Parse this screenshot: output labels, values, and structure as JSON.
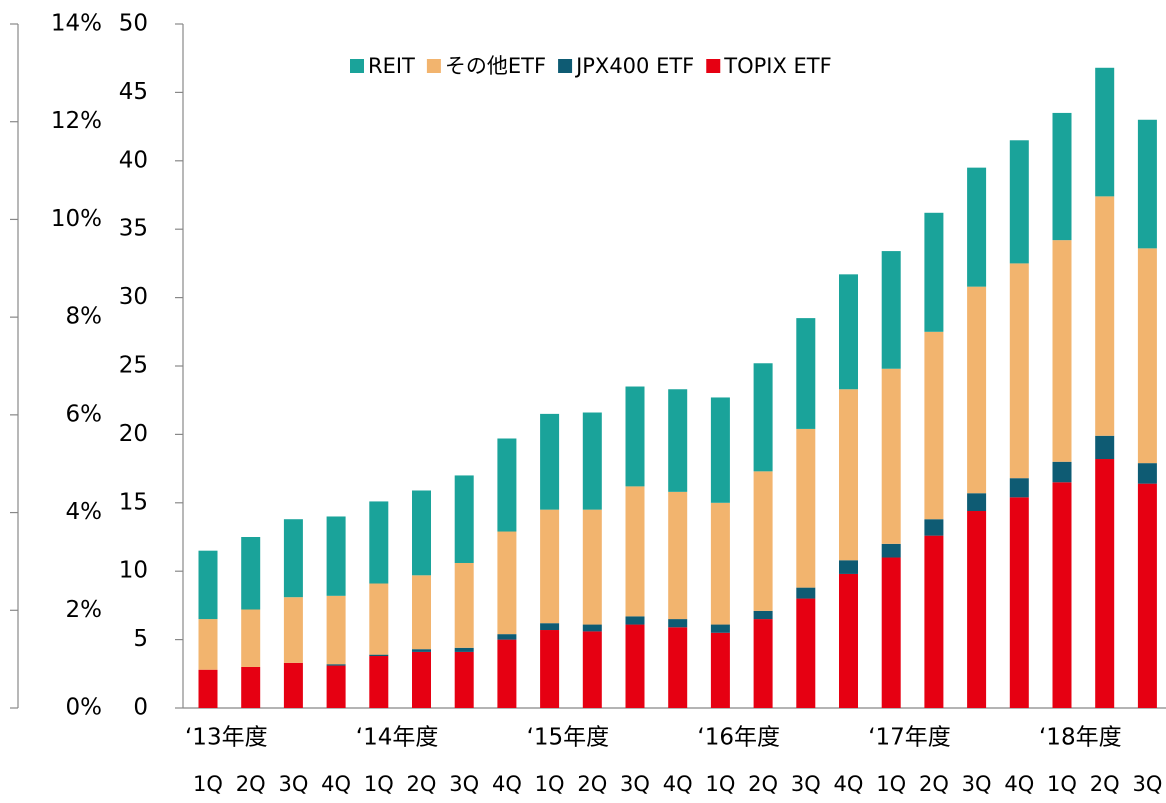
{
  "chart_data": {
    "type": "stacked_bar",
    "categories": [
      "1Q",
      "2Q",
      "3Q",
      "4Q",
      "1Q",
      "2Q",
      "3Q",
      "4Q",
      "1Q",
      "2Q",
      "3Q",
      "4Q",
      "1Q",
      "2Q",
      "3Q",
      "4Q",
      "1Q",
      "2Q",
      "3Q",
      "4Q",
      "1Q",
      "2Q",
      "3Q"
    ],
    "x_groups": [
      "‘13年度",
      null,
      null,
      null,
      "‘14年度",
      null,
      null,
      null,
      "‘15年度",
      null,
      null,
      null,
      "‘16年度",
      null,
      null,
      null,
      "‘17年度",
      null,
      null,
      null,
      "‘18年度",
      null,
      null
    ],
    "series": [
      {
        "name": "REIT",
        "color": "#1aa39a",
        "values": [
          5.0,
          5.3,
          5.7,
          5.8,
          6.0,
          6.2,
          6.4,
          6.8,
          7.0,
          7.1,
          7.3,
          7.5,
          7.7,
          7.9,
          8.1,
          8.4,
          8.6,
          8.7,
          8.7,
          9.0,
          9.3,
          9.4,
          9.4
        ]
      },
      {
        "name": "その他ETF",
        "color": "#f2b46e",
        "values": [
          3.7,
          4.2,
          4.8,
          5.0,
          5.2,
          5.4,
          6.2,
          7.5,
          8.3,
          8.4,
          9.5,
          9.3,
          8.9,
          10.2,
          11.6,
          12.5,
          12.8,
          13.7,
          15.1,
          15.7,
          16.2,
          17.5,
          15.7
        ]
      },
      {
        "name": "JPX400 ETF",
        "color": "#0e5b73",
        "values": [
          0,
          0,
          0,
          0.1,
          0.1,
          0.2,
          0.3,
          0.4,
          0.5,
          0.5,
          0.6,
          0.6,
          0.6,
          0.6,
          0.8,
          1.0,
          1.0,
          1.2,
          1.3,
          1.4,
          1.5,
          1.7,
          1.5
        ]
      },
      {
        "name": "TOPIX ETF",
        "color": "#e60012",
        "values": [
          2.8,
          3.0,
          3.3,
          3.1,
          3.8,
          4.1,
          4.1,
          5.0,
          5.7,
          5.6,
          6.1,
          5.9,
          5.5,
          6.5,
          8.0,
          9.8,
          11.0,
          12.6,
          14.4,
          15.4,
          16.5,
          18.2,
          16.4
        ]
      }
    ],
    "ylim": [
      0,
      50
    ],
    "yticks": [
      0,
      5,
      10,
      15,
      20,
      25,
      30,
      35,
      40,
      45,
      50
    ],
    "y2lim": [
      0,
      14
    ],
    "y2ticks": [
      {
        "value": 0,
        "label": "0%"
      },
      {
        "value": 2,
        "label": "2%"
      },
      {
        "value": 4,
        "label": "4%"
      },
      {
        "value": 6,
        "label": "6%"
      },
      {
        "value": 8,
        "label": "8%"
      },
      {
        "value": 10,
        "label": "10%"
      },
      {
        "value": 12,
        "label": "12%"
      },
      {
        "value": 14,
        "label": "14%"
      }
    ],
    "legend": "top"
  }
}
